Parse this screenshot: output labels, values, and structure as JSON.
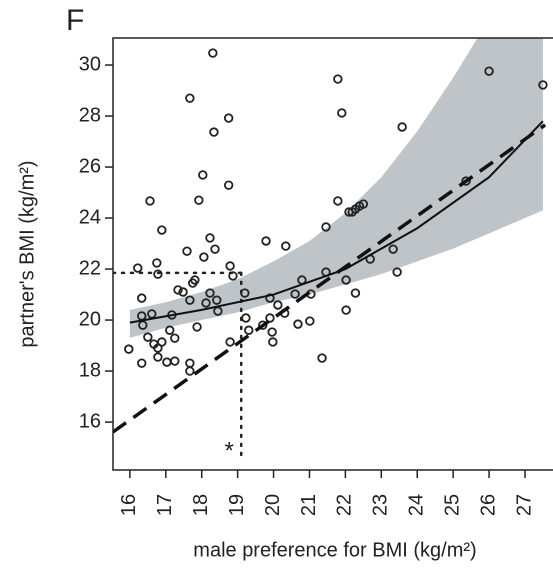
{
  "chart_data": {
    "type": "scatter",
    "panel_label": "F",
    "x_label": "male preference for BMI (kg/m²)",
    "y_label": "partner's BMI (kg/m²)",
    "xlim": [
      15.53,
      27.78
    ],
    "ylim": [
      14.12,
      31.06
    ],
    "xticks": [
      16,
      17,
      18,
      19,
      20,
      21,
      22,
      23,
      24,
      25,
      26,
      27
    ],
    "yticks": [
      16,
      18,
      20,
      22,
      24,
      26,
      28,
      30
    ],
    "series": [
      {
        "color": "#222222",
        "x": [
          15.97,
          16.22,
          16.33,
          16.33,
          16.36,
          16.33,
          16.5,
          16.56,
          16.61,
          16.67,
          16.75,
          16.78,
          16.78,
          16.78,
          16.89,
          16.89,
          17.03,
          17.11,
          17.17,
          17.25,
          17.25,
          17.34,
          17.48,
          17.59,
          17.67,
          17.67,
          17.67,
          17.67,
          17.75,
          17.81,
          17.87,
          17.92,
          18.03,
          18.06,
          18.12,
          18.23,
          18.23,
          18.31,
          18.34,
          18.37,
          18.42,
          18.45,
          18.75,
          18.75,
          18.79,
          18.79,
          18.87,
          19.2,
          19.23,
          19.31,
          19.7,
          19.79,
          19.9,
          19.9,
          19.96,
          19.98,
          20.12,
          20.31,
          20.34,
          20.6,
          20.68,
          20.79,
          21.01,
          21.04,
          21.35,
          21.46,
          21.46,
          21.79,
          21.79,
          21.9,
          22.02,
          22.02,
          22.1,
          22.19,
          22.28,
          22.28,
          22.39,
          22.5,
          22.69,
          23.33,
          23.44,
          23.58,
          25.36,
          26.0,
          27.5
        ],
        "y": [
          18.86,
          22.04,
          20.86,
          20.16,
          19.8,
          18.31,
          19.33,
          24.67,
          20.24,
          19.06,
          22.24,
          21.8,
          18.9,
          18.55,
          23.53,
          19.14,
          18.35,
          19.6,
          20.2,
          18.39,
          19.29,
          21.18,
          21.1,
          22.7,
          28.7,
          20.78,
          18.31,
          18.0,
          21.45,
          21.57,
          19.73,
          24.7,
          25.69,
          22.47,
          20.67,
          21.06,
          23.22,
          30.47,
          27.37,
          22.78,
          20.78,
          20.35,
          27.92,
          25.29,
          22.12,
          19.14,
          21.73,
          21.06,
          20.08,
          19.6,
          19.8,
          23.1,
          20.86,
          20.08,
          19.53,
          19.14,
          20.59,
          20.27,
          22.9,
          21.02,
          19.84,
          21.57,
          19.96,
          21.02,
          18.51,
          23.65,
          21.88,
          29.45,
          24.67,
          28.12,
          21.57,
          20.39,
          24.24,
          24.24,
          21.06,
          24.35,
          24.47,
          24.55,
          22.39,
          22.78,
          21.88,
          27.57,
          25.45,
          29.76,
          29.22
        ]
      }
    ],
    "band": {
      "color": "#bfc4c9",
      "x": [
        16,
        17,
        18,
        19,
        20,
        21,
        22,
        23,
        24,
        25,
        26,
        27.5
      ],
      "upper": [
        20.4,
        20.7,
        21.1,
        21.6,
        22.3,
        23.1,
        24.2,
        25.6,
        27.4,
        29.5,
        31.8,
        35.5
      ],
      "lower": [
        19.3,
        19.7,
        20.0,
        20.3,
        20.7,
        21.0,
        21.4,
        21.8,
        22.3,
        22.8,
        23.4,
        24.3
      ]
    },
    "fit": {
      "x": [
        16,
        18,
        20,
        22,
        24,
        26,
        27.5
      ],
      "y": [
        19.9,
        20.4,
        21.0,
        22.0,
        23.6,
        25.6,
        27.8
      ]
    },
    "reference_line": {
      "x": [
        15.53,
        27.56
      ],
      "y": [
        15.61,
        27.65
      ]
    },
    "reference_x": 19.1,
    "reference_y": 21.85,
    "annotation": "*"
  }
}
